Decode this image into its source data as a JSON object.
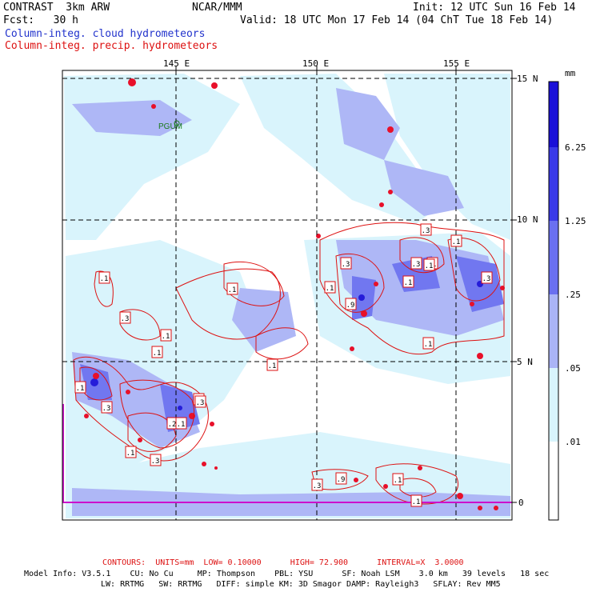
{
  "header": {
    "left_line1": "CONTRAST  3km ARW",
    "center_line1": "NCAR/MMM",
    "init": "Init: 12 UTC Sun 16 Feb 14",
    "fcst": "Fcst:   30 h",
    "valid": "Valid: 18 UTC Mon 17 Feb 14 (04 ChT Tue 18 Feb 14)",
    "legend_cloud": "Column-integ. cloud hydrometeors",
    "legend_precip": "Column-integ. precip. hydrometeors"
  },
  "map": {
    "lon_labels": [
      "145 E",
      "150 E",
      "155 E"
    ],
    "lat_labels": [
      "15 N",
      "10 N",
      "5 N",
      "0"
    ],
    "station_label": "PGUM",
    "contour_labels": [
      ".1",
      ".1",
      ".3",
      ".1",
      ".1",
      ".1",
      ".3",
      ".1",
      ".3",
      ".2",
      ".1",
      ".1",
      ".3",
      ".1",
      ".9",
      ".1",
      ".3",
      ".1",
      ".1",
      ".3",
      ".1",
      ".3",
      ".3",
      ".1",
      ".3",
      ".1",
      ".9",
      ".3",
      ".1"
    ]
  },
  "colorbar": {
    "unit": "mm",
    "levels": [
      "6.25",
      "1.25",
      ".25",
      ".05",
      ".01"
    ],
    "colors": [
      "#1a10d8",
      "#3a3ae8",
      "#6a70f0",
      "#aab4f6",
      "#d8f4fc",
      "#ffffff"
    ]
  },
  "footer": {
    "contours": "CONTOURS:  UNITS=mm  LOW= 0.10000      HIGH= 72.900      INTERVAL=X  3.0000",
    "model_line1": "Model Info: V3.5.1    CU: No Cu     MP: Thompson    PBL: YSU      SF: Noah LSM    3.0 km   39 levels   18 sec",
    "model_line2": "LW: RRTMG   SW: RRTMG   DIFF: simple KM: 3D Smagor DAMP: Rayleigh3   SFLAY: Rev MM5"
  }
}
